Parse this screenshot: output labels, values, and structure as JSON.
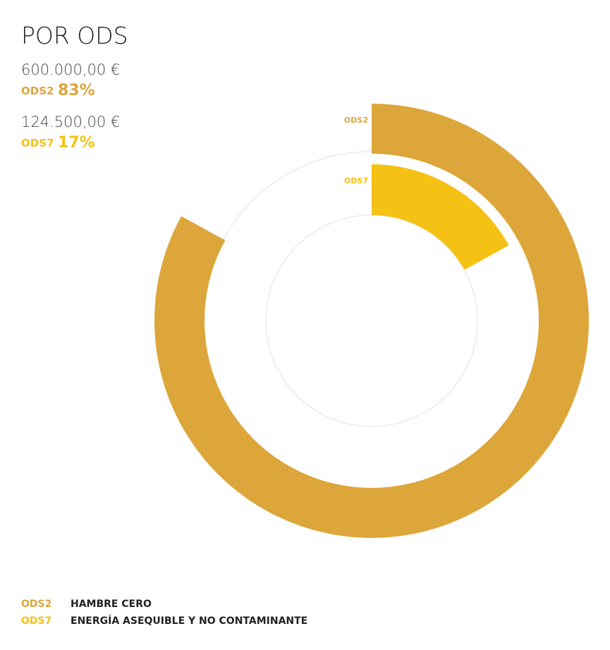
{
  "chart_data": {
    "type": "radial-bar",
    "title": "POR ODS",
    "ylim": [
      0,
      100
    ],
    "series": [
      {
        "name": "ODS2",
        "color": "#dda63a",
        "values": [
          83
        ],
        "value_labels": [
          "83%"
        ],
        "amounts": [
          600000
        ],
        "amount_labels": [
          "600.000,00 €"
        ],
        "description": "HAMBRE CERO"
      },
      {
        "name": "ODS7",
        "color": "#f5c115",
        "values": [
          17
        ],
        "value_labels": [
          "17%"
        ],
        "amounts": [
          124500
        ],
        "amount_labels": [
          "124.500,00 €"
        ],
        "description": "ENERGÍA ASEQUIBLE Y NO CONTAMINANTE"
      }
    ]
  }
}
